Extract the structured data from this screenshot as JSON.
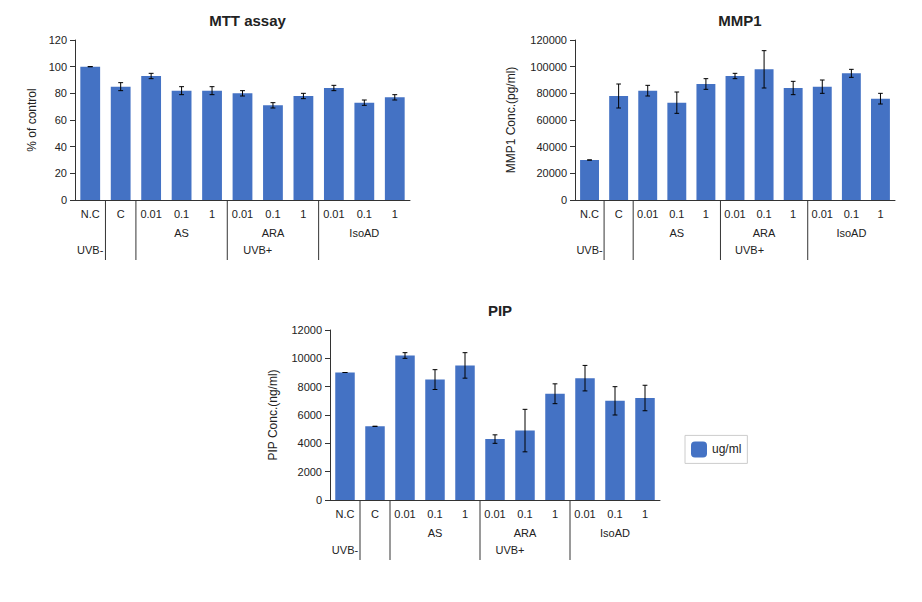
{
  "chart_data": [
    {
      "type": "bar",
      "title": "MTT assay",
      "ylabel": "% of control",
      "categories": [
        "N.C",
        "C",
        "0.01",
        "0.1",
        "1",
        "0.01",
        "0.1",
        "1",
        "0.01",
        "0.1",
        "1"
      ],
      "values": [
        100,
        85,
        93,
        82,
        82,
        80,
        71,
        78,
        84,
        73,
        77
      ],
      "errors": [
        0,
        3,
        2,
        3,
        3,
        2,
        2,
        2,
        2,
        2,
        2
      ],
      "color": "#4472C4",
      "ylim": [
        0,
        120
      ],
      "yticks": [
        0,
        20,
        40,
        60,
        80,
        100,
        120
      ],
      "annotations": [
        "AS",
        "ARA",
        "IsoAD",
        "UVB-",
        "UVB+"
      ],
      "grid": false
    },
    {
      "type": "bar",
      "title": "MMP1",
      "ylabel": "MMP1 Conc.(pg/ml)",
      "categories": [
        "N.C",
        "C",
        "0.01",
        "0.1",
        "1",
        "0.01",
        "0.1",
        "1",
        "0.01",
        "0.1",
        "1"
      ],
      "values": [
        30000,
        78000,
        82000,
        73000,
        87000,
        93000,
        98000,
        84000,
        85000,
        95000,
        76000
      ],
      "errors": [
        0,
        9000,
        4000,
        8000,
        4000,
        2000,
        14000,
        5000,
        5000,
        3000,
        4000
      ],
      "color": "#4472C4",
      "ylim": [
        0,
        120000
      ],
      "yticks": [
        0,
        20000,
        40000,
        60000,
        80000,
        100000,
        120000
      ],
      "annotations": [
        "AS",
        "ARA",
        "IsoAD",
        "UVB-",
        "UVB+"
      ],
      "grid": false
    },
    {
      "type": "bar",
      "title": "PIP",
      "ylabel": "PIP Conc.(ng/ml)",
      "categories": [
        "N.C",
        "C",
        "0.01",
        "0.1",
        "1",
        "0.01",
        "0.1",
        "1",
        "0.01",
        "0.1",
        "1"
      ],
      "series": [
        {
          "name": "ug/ml",
          "color": "#4472C4",
          "values": [
            9000,
            5200,
            10200,
            8500,
            9500,
            4300,
            4900,
            7500,
            8600,
            7000,
            7200
          ],
          "errors": [
            0,
            0,
            200,
            700,
            900,
            300,
            1500,
            700,
            900,
            1000,
            900
          ]
        }
      ],
      "ylim": [
        0,
        12000
      ],
      "yticks": [
        0,
        2000,
        4000,
        6000,
        8000,
        10000,
        12000
      ],
      "annotations": [
        "AS",
        "ARA",
        "IsoAD",
        "UVB-",
        "UVB+"
      ],
      "grid": false,
      "legend": "right"
    }
  ]
}
